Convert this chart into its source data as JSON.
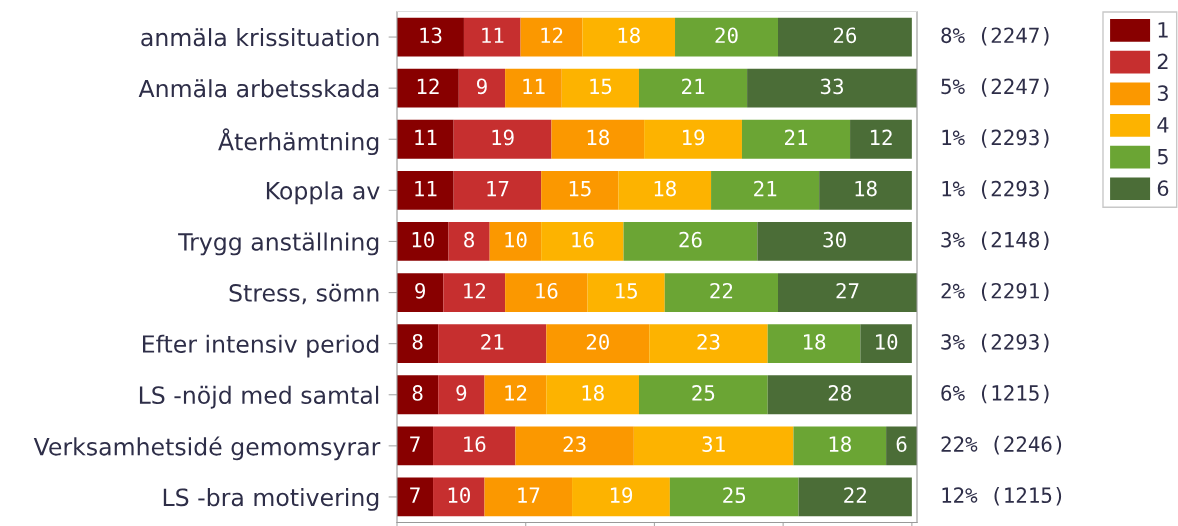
{
  "chart_data": {
    "type": "bar",
    "orientation": "horizontal",
    "stacked": true,
    "data_labels": true,
    "legend": "right",
    "tick_labels": "y",
    "categories": [
      "anmäla krissituation",
      "Anmäla arbetsskada",
      "Återhämtning",
      "Koppla av",
      "Trygg anställning",
      "Stress, sömn",
      "Efter intensiv period",
      "LS -nöjd med samtal",
      "Verksamhetsidé gemomsyrar",
      "LS -bra motivering"
    ],
    "series": [
      {
        "name": "1",
        "color": "#880000",
        "values": [
          13,
          12,
          11,
          11,
          10,
          9,
          8,
          8,
          7,
          7
        ]
      },
      {
        "name": "2",
        "color": "#c62f2f",
        "values": [
          11,
          9,
          19,
          17,
          8,
          12,
          21,
          9,
          16,
          10
        ]
      },
      {
        "name": "3",
        "color": "#fb9800",
        "values": [
          12,
          11,
          18,
          15,
          10,
          16,
          20,
          12,
          23,
          17
        ]
      },
      {
        "name": "4",
        "color": "#fdb300",
        "values": [
          18,
          15,
          19,
          18,
          16,
          15,
          23,
          18,
          31,
          19
        ]
      },
      {
        "name": "5",
        "color": "#6ba534",
        "values": [
          20,
          21,
          21,
          21,
          26,
          22,
          18,
          25,
          18,
          25
        ]
      },
      {
        "name": "6",
        "color": "#4b6d37",
        "values": [
          26,
          33,
          12,
          18,
          30,
          27,
          10,
          28,
          6,
          22
        ]
      }
    ],
    "xlim": [
      0,
      101
    ],
    "xticks": [
      {
        "value": 0,
        "label": null
      },
      {
        "value": 25,
        "label": null
      },
      {
        "value": 50,
        "label": null
      },
      {
        "value": 75,
        "label": null
      },
      {
        "value": 100,
        "label": null
      }
    ],
    "annotations": [
      "8% (2247)",
      "5% (2247)",
      "1% (2293)",
      "1% (2293)",
      "3% (2148)",
      "2% (2291)",
      "3% (2293)",
      "6% (1215)",
      "22% (2246)",
      "12% (1215)"
    ]
  }
}
